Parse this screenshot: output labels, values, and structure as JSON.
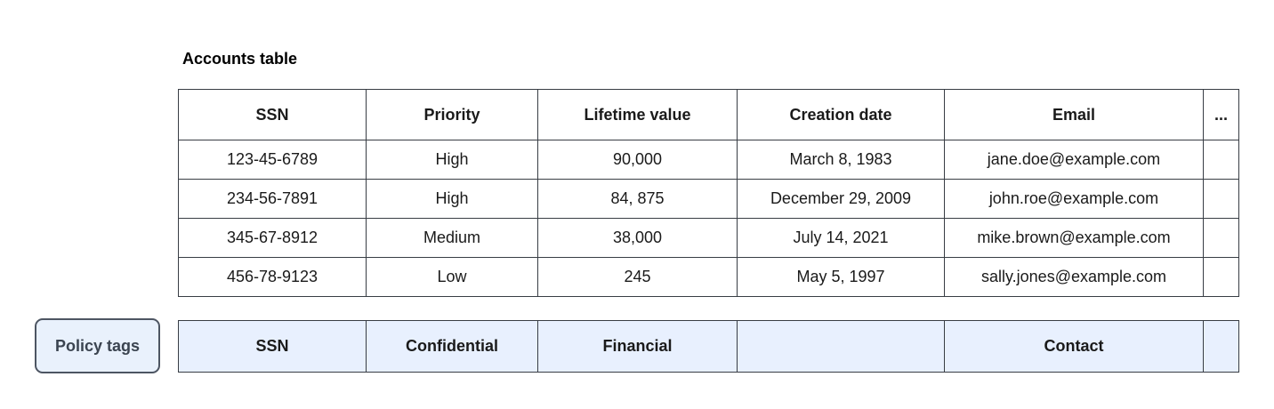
{
  "title": "Accounts table",
  "colors": {
    "table_border": "#383d44",
    "policy_cell_bg": "#e8f0fe",
    "chip_bg": "#e9f1fc",
    "chip_border": "#4d5562",
    "chip_text": "#3b4450",
    "text": "#1a1a1a"
  },
  "accounts_table": {
    "columns": [
      "SSN",
      "Priority",
      "Lifetime value",
      "Creation date",
      "Email",
      "..."
    ],
    "rows": [
      [
        "123-45-6789",
        "High",
        "90,000",
        "March 8, 1983",
        "jane.doe@example.com",
        ""
      ],
      [
        "234-56-7891",
        "High",
        "84, 875",
        "December 29, 2009",
        "john.roe@example.com",
        ""
      ],
      [
        "345-67-8912",
        "Medium",
        "38,000",
        "July 14, 2021",
        "mike.brown@example.com",
        ""
      ],
      [
        "456-78-9123",
        "Low",
        "245",
        "May 5, 1997",
        "sally.jones@example.com",
        ""
      ]
    ]
  },
  "policy_tags": {
    "label": "Policy tags",
    "tags": [
      "SSN",
      "Confidential",
      "Financial",
      "",
      "Contact",
      ""
    ]
  }
}
